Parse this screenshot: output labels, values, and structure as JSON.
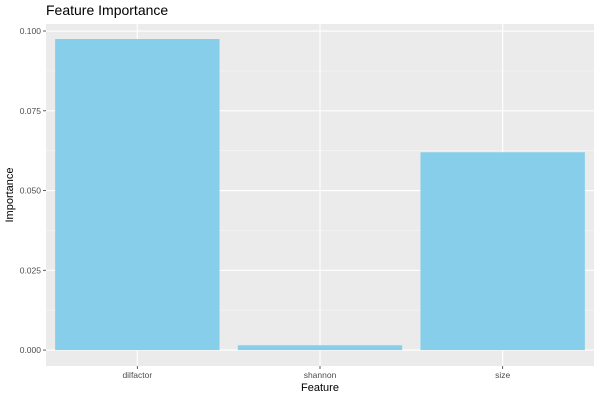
{
  "chart_data": {
    "type": "bar",
    "title": "Feature Importance",
    "xlabel": "Feature",
    "ylabel": "Importance",
    "categories": [
      "dilfactor",
      "shannon",
      "size"
    ],
    "values": [
      0.0975,
      0.0015,
      0.062
    ],
    "ylim": [
      -0.005,
      0.1022
    ],
    "yticks": [
      0,
      0.025,
      0.05,
      0.075,
      0.1
    ],
    "ytick_labels": [
      "0.000",
      "0.025",
      "0.050",
      "0.075",
      "0.100"
    ],
    "grid": true,
    "legend": "none",
    "colors": {
      "bar": "#87ceeb",
      "panel": "#ebebeb",
      "grid_major": "#ffffff",
      "grid_minor": "#f5f5f5",
      "tick_text": "#4d4d4d",
      "tick_mark": "#333333"
    }
  }
}
